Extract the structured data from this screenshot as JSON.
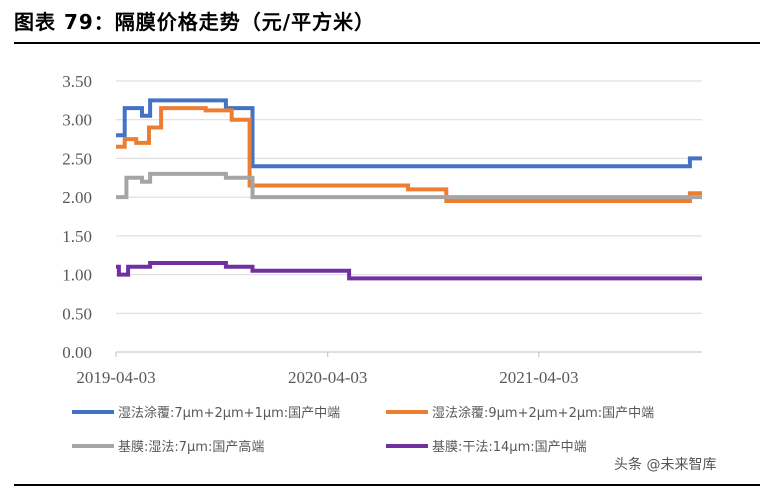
{
  "title": "图表 79：隔膜价格走势（元/平方米）",
  "watermark": "头条 @未来智库",
  "chart_data": {
    "type": "line",
    "title": "图表 79：隔膜价格走势（元/平方米）",
    "x_axis": {
      "start": "2019-04-03",
      "end": "2022-01-10",
      "tick_labels": [
        "2019-04-03",
        "2020-04-03",
        "2021-04-03"
      ]
    },
    "ylim": [
      0,
      3.5
    ],
    "y_ticks": [
      "0.00",
      "0.50",
      "1.00",
      "1.50",
      "2.00",
      "2.50",
      "3.00",
      "3.50"
    ],
    "grid": "horizontal",
    "legend_position": "bottom",
    "series": [
      {
        "name": "湿法涂覆:7μm+2μm+1μm:国产中端",
        "color": "#4472C4",
        "points": [
          [
            "2019-04-03",
            2.8
          ],
          [
            "2019-04-18",
            2.8
          ],
          [
            "2019-04-18",
            3.15
          ],
          [
            "2019-05-18",
            3.15
          ],
          [
            "2019-05-18",
            3.05
          ],
          [
            "2019-06-01",
            3.05
          ],
          [
            "2019-06-01",
            3.25
          ],
          [
            "2019-10-10",
            3.25
          ],
          [
            "2019-10-10",
            3.15
          ],
          [
            "2019-11-25",
            3.15
          ],
          [
            "2019-11-25",
            2.4
          ],
          [
            "2021-12-20",
            2.4
          ],
          [
            "2021-12-20",
            2.5
          ],
          [
            "2022-01-10",
            2.5
          ]
        ]
      },
      {
        "name": "湿法涂覆:9μm+2μm+2μm:国产中端",
        "color": "#ED7D31",
        "points": [
          [
            "2019-04-03",
            2.65
          ],
          [
            "2019-04-18",
            2.65
          ],
          [
            "2019-04-18",
            2.75
          ],
          [
            "2019-05-08",
            2.75
          ],
          [
            "2019-05-08",
            2.7
          ],
          [
            "2019-05-30",
            2.7
          ],
          [
            "2019-05-30",
            2.9
          ],
          [
            "2019-06-20",
            2.9
          ],
          [
            "2019-06-20",
            3.15
          ],
          [
            "2019-09-05",
            3.15
          ],
          [
            "2019-09-05",
            3.12
          ],
          [
            "2019-10-20",
            3.12
          ],
          [
            "2019-10-20",
            3.0
          ],
          [
            "2019-11-20",
            3.0
          ],
          [
            "2019-11-20",
            2.15
          ],
          [
            "2020-08-20",
            2.15
          ],
          [
            "2020-08-20",
            2.1
          ],
          [
            "2020-10-25",
            2.1
          ],
          [
            "2020-10-25",
            1.95
          ],
          [
            "2021-12-20",
            1.95
          ],
          [
            "2021-12-20",
            2.05
          ],
          [
            "2022-01-10",
            2.05
          ]
        ]
      },
      {
        "name": "基膜:湿法:7μm:国产高端",
        "color": "#A5A5A5",
        "points": [
          [
            "2019-04-03",
            2.0
          ],
          [
            "2019-04-21",
            2.0
          ],
          [
            "2019-04-21",
            2.25
          ],
          [
            "2019-05-18",
            2.25
          ],
          [
            "2019-05-18",
            2.2
          ],
          [
            "2019-06-01",
            2.2
          ],
          [
            "2019-06-01",
            2.3
          ],
          [
            "2019-10-10",
            2.3
          ],
          [
            "2019-10-10",
            2.25
          ],
          [
            "2019-11-25",
            2.25
          ],
          [
            "2019-11-25",
            2.0
          ],
          [
            "2022-01-10",
            2.0
          ]
        ]
      },
      {
        "name": "基膜:干法:14μm:国产中端",
        "color": "#7030A0",
        "points": [
          [
            "2019-04-03",
            1.1
          ],
          [
            "2019-04-08",
            1.1
          ],
          [
            "2019-04-08",
            1.0
          ],
          [
            "2019-04-24",
            1.0
          ],
          [
            "2019-04-24",
            1.1
          ],
          [
            "2019-06-01",
            1.1
          ],
          [
            "2019-06-01",
            1.15
          ],
          [
            "2019-10-10",
            1.15
          ],
          [
            "2019-10-10",
            1.1
          ],
          [
            "2019-11-25",
            1.1
          ],
          [
            "2019-11-25",
            1.05
          ],
          [
            "2020-05-10",
            1.05
          ],
          [
            "2020-05-10",
            0.95
          ],
          [
            "2022-01-10",
            0.95
          ]
        ]
      }
    ]
  }
}
